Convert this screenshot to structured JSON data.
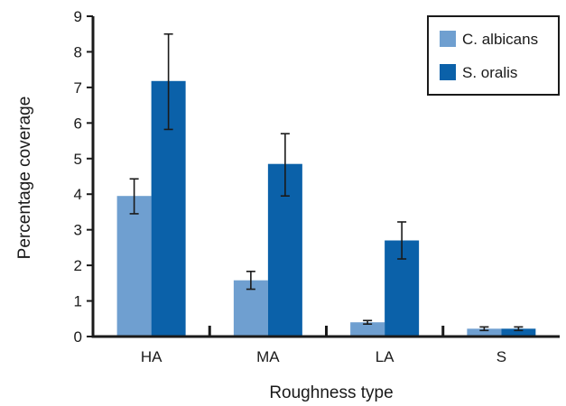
{
  "chart_data": {
    "type": "bar",
    "title": "",
    "xlabel": "Roughness type",
    "ylabel": "Percentage coverage",
    "categories": [
      "HA",
      "MA",
      "LA",
      "S"
    ],
    "ylim": [
      0,
      9
    ],
    "yticks": [
      "0",
      "1",
      "2",
      "3",
      "4",
      "5",
      "6",
      "7",
      "8",
      "9"
    ],
    "series": [
      {
        "name": "C. albicans",
        "color": "#6f9fd0",
        "values": [
          3.95,
          1.58,
          0.4,
          0.22
        ],
        "error_low": [
          3.45,
          1.33,
          0.35,
          0.17
        ],
        "error_high": [
          4.43,
          1.83,
          0.45,
          0.27
        ]
      },
      {
        "name": "S. oralis",
        "color": "#0b61a9",
        "values": [
          7.18,
          4.85,
          2.7,
          0.22
        ],
        "error_low": [
          5.82,
          3.95,
          2.18,
          0.17
        ],
        "error_high": [
          8.5,
          5.7,
          3.22,
          0.27
        ]
      }
    ],
    "legend": "top-right",
    "grid": false
  }
}
